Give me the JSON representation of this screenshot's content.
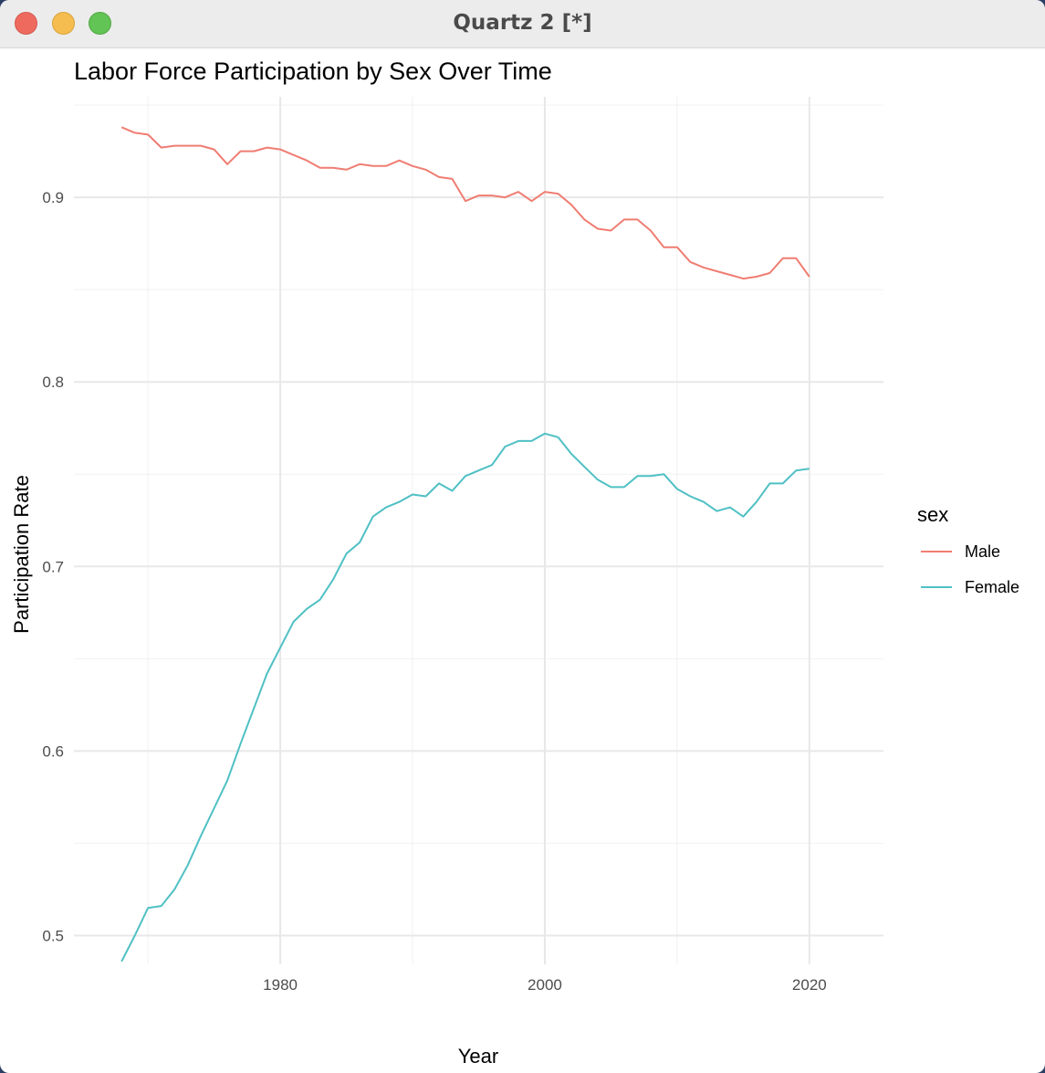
{
  "window": {
    "title": "Quartz 2 [*]"
  },
  "chart_data": {
    "type": "line",
    "title": "Labor Force Participation by Sex Over Time",
    "xlabel": "Year",
    "ylabel": "Participation Rate",
    "xlim": [
      1964.4,
      2025.6
    ],
    "ylim": [
      0.4844,
      0.9545
    ],
    "x_ticks": [
      1980,
      2000,
      2020
    ],
    "x_minor_ticks": [
      1970,
      1990,
      2010
    ],
    "y_ticks": [
      0.5,
      0.6,
      0.7,
      0.8,
      0.9
    ],
    "y_minor_ticks": [
      0.55,
      0.65,
      0.75,
      0.85,
      0.95
    ],
    "grid": true,
    "legend": {
      "title": "sex",
      "position": "right"
    },
    "x": [
      1968,
      1969,
      1970,
      1971,
      1972,
      1973,
      1974,
      1975,
      1976,
      1977,
      1978,
      1979,
      1980,
      1981,
      1982,
      1983,
      1984,
      1985,
      1986,
      1987,
      1988,
      1989,
      1990,
      1991,
      1992,
      1993,
      1994,
      1995,
      1996,
      1997,
      1998,
      1999,
      2000,
      2001,
      2002,
      2003,
      2004,
      2005,
      2006,
      2007,
      2008,
      2009,
      2010,
      2011,
      2012,
      2013,
      2014,
      2015,
      2016,
      2017,
      2018,
      2019,
      2020
    ],
    "series": [
      {
        "name": "Male",
        "color": "#f07d72",
        "values": [
          0.938,
          0.935,
          0.934,
          0.927,
          0.928,
          0.928,
          0.928,
          0.926,
          0.918,
          0.925,
          0.925,
          0.927,
          0.926,
          0.923,
          0.92,
          0.916,
          0.916,
          0.915,
          0.918,
          0.917,
          0.917,
          0.92,
          0.917,
          0.915,
          0.911,
          0.91,
          0.898,
          0.901,
          0.901,
          0.9,
          0.903,
          0.898,
          0.903,
          0.902,
          0.896,
          0.888,
          0.883,
          0.882,
          0.888,
          0.888,
          0.882,
          0.873,
          0.873,
          0.865,
          0.862,
          0.86,
          0.858,
          0.856,
          0.857,
          0.859,
          0.867,
          0.867,
          0.857
        ]
      },
      {
        "name": "Female",
        "color": "#4fc0c4",
        "values": [
          0.486,
          0.5,
          0.515,
          0.516,
          0.525,
          0.538,
          0.554,
          0.569,
          0.584,
          0.604,
          0.623,
          0.642,
          0.656,
          0.67,
          0.677,
          0.682,
          0.693,
          0.707,
          0.713,
          0.727,
          0.732,
          0.735,
          0.739,
          0.738,
          0.745,
          0.741,
          0.749,
          0.752,
          0.755,
          0.765,
          0.768,
          0.768,
          0.772,
          0.77,
          0.761,
          0.754,
          0.747,
          0.743,
          0.743,
          0.749,
          0.749,
          0.75,
          0.742,
          0.738,
          0.735,
          0.73,
          0.732,
          0.727,
          0.735,
          0.745,
          0.745,
          0.752,
          0.753
        ]
      }
    ]
  }
}
